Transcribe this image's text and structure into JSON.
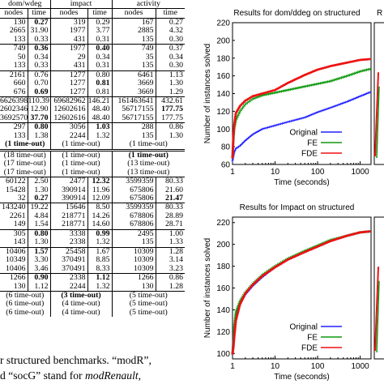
{
  "table": {
    "groups": [
      "dom/wdeg",
      "impact",
      "activity"
    ],
    "subheaders": [
      "nodes",
      "time",
      "nodes",
      "time",
      "nodes",
      "time"
    ],
    "rows": [
      {
        "c": [
          "130",
          "0.27",
          "319",
          "0.29",
          "167",
          "0.27"
        ],
        "b": [
          1
        ],
        "rule": "top"
      },
      {
        "c": [
          "2665",
          "31.90",
          "1977",
          "3.77",
          "2885",
          "4.32"
        ],
        "b": []
      },
      {
        "c": [
          "133",
          "0.33",
          "431",
          "0.31",
          "135",
          "0.30"
        ],
        "b": []
      },
      {
        "c": [
          "749",
          "0.36",
          "1977",
          "0.40",
          "749",
          "0.37"
        ],
        "b": [
          1,
          3
        ],
        "rule": "top"
      },
      {
        "c": [
          "50",
          "0.34",
          "29",
          "0.34",
          "35",
          "0.34"
        ],
        "b": []
      },
      {
        "c": [
          "133",
          "0.33",
          "431",
          "0.31",
          "135",
          "0.30"
        ],
        "b": []
      },
      {
        "c": [
          "2161",
          "0.76",
          "1277",
          "0.80",
          "6461",
          "1.13"
        ],
        "b": [],
        "rule": "top"
      },
      {
        "c": [
          "660",
          "0.70",
          "1277",
          "0.81",
          "3669",
          "1.30"
        ],
        "b": [
          3
        ]
      },
      {
        "c": [
          "676",
          "0.69",
          "1277",
          "0.81",
          "3669",
          "1.29"
        ],
        "b": [
          1
        ]
      },
      {
        "c": [
          "6626398",
          "110.39",
          "69682962",
          "146.21",
          "161463641",
          "432.61"
        ],
        "b": [],
        "rule": "top"
      },
      {
        "c": [
          "2602346",
          "12.90",
          "12602616",
          "48.40",
          "56717155",
          "177.75"
        ],
        "b": [
          5
        ]
      },
      {
        "c": [
          "3692570",
          "37.70",
          "12602616",
          "48.40",
          "56717155",
          "177.75"
        ],
        "b": [
          1
        ]
      },
      {
        "c": [
          "297",
          "0.80",
          "3056",
          "1.03",
          "288",
          "0.86"
        ],
        "b": [
          1,
          3
        ],
        "rule": "top"
      },
      {
        "c": [
          "133",
          "1.38",
          "2244",
          "1.32",
          "135",
          "1.30"
        ],
        "b": []
      },
      {
        "c": [
          "(1 time-out)",
          "(1 time-out)",
          "(1 time-out)"
        ],
        "span": true,
        "b": [
          0
        ]
      },
      {
        "c": [
          "(18 time-out)",
          "(1 time-out)",
          "(1 time-out)"
        ],
        "span": true,
        "b": [
          2
        ],
        "rule": "double"
      },
      {
        "c": [
          "(17 time-out)",
          "(1 time-out)",
          "(13 time-out)"
        ],
        "span": true,
        "b": []
      },
      {
        "c": [
          "(17 time-out)",
          "(1 time-out)",
          "(13 time-out)"
        ],
        "span": true,
        "b": []
      },
      {
        "c": [
          "60122",
          "2.50",
          "2477",
          "12.32",
          "3599359",
          "80.33"
        ],
        "b": [
          3
        ],
        "rule": "top"
      },
      {
        "c": [
          "15428",
          "1.30",
          "390914",
          "11.96",
          "675806",
          "21.60"
        ],
        "b": []
      },
      {
        "c": [
          "32",
          "0.27",
          "390914",
          "12.09",
          "675806",
          "21.47"
        ],
        "b": [
          1,
          5
        ]
      },
      {
        "c": [
          "143240",
          "19.22",
          "15646",
          "8.50",
          "3599359",
          "80.33"
        ],
        "b": [],
        "rule": "top"
      },
      {
        "c": [
          "2261",
          "4.84",
          "218771",
          "14.26",
          "678806",
          "28.89"
        ],
        "b": []
      },
      {
        "c": [
          "149",
          "1.54",
          "218771",
          "14.60",
          "678806",
          "28.71"
        ],
        "b": []
      },
      {
        "c": [
          "305",
          "0.80",
          "3338",
          "0.99",
          "2495",
          "1.00"
        ],
        "b": [
          1,
          3
        ],
        "rule": "top"
      },
      {
        "c": [
          "143",
          "1.30",
          "2338",
          "1.32",
          "135",
          "1.33"
        ],
        "b": []
      },
      {
        "c": [
          "10406",
          "1.57",
          "25458",
          "1.67",
          "10309",
          "1.28"
        ],
        "b": [
          1
        ],
        "rule": "top"
      },
      {
        "c": [
          "10349",
          "3.30",
          "370491",
          "8.85",
          "10309",
          "3.14"
        ],
        "b": []
      },
      {
        "c": [
          "10406",
          "3.46",
          "370491",
          "8.33",
          "10309",
          "3.23"
        ],
        "b": []
      },
      {
        "c": [
          "1266",
          "0.90",
          "2338",
          "1.12",
          "1266",
          "0.86"
        ],
        "b": [
          1,
          3
        ],
        "rule": "top"
      },
      {
        "c": [
          "130",
          "1.12",
          "2244",
          "1.32",
          "130",
          "1.28"
        ],
        "b": []
      },
      {
        "c": [
          "(6 time-out)",
          "(3 time-out)",
          "(5 time-out)"
        ],
        "span": true,
        "b": [
          1
        ],
        "rule": "top"
      },
      {
        "c": [
          "(6 time-out)",
          "(4 time-out)",
          "(5 time-out)"
        ],
        "span": true,
        "b": []
      },
      {
        "c": [
          "(6 time-out)",
          "(4 time-out)",
          "(5 time-out)"
        ],
        "span": true,
        "b": []
      }
    ]
  },
  "caption": {
    "line1a": "r structured benchmarks. “modR”,",
    "line2a": "d “socG” stand for ",
    "line2b": "modRenault",
    "line2c": ","
  },
  "charts": [
    {
      "title": "Results for dom/ddeg on structured",
      "ylabel": "Number of instances solved",
      "xlabel": "Time (seconds)",
      "yticks": [
        "60",
        "80",
        "100",
        "120",
        "140",
        "160",
        "180",
        "200",
        "220"
      ],
      "xticks": [
        "1",
        "10",
        "100",
        "1000"
      ],
      "legend": [
        "Original",
        "FE",
        "FDE"
      ]
    },
    {
      "title": "Results for Impact on structured",
      "ylabel": "Number of instances solved",
      "xlabel": "Time (seconds)",
      "yticks": [
        "100",
        "120",
        "140",
        "160",
        "180",
        "200",
        "220"
      ],
      "xticks": [
        "1",
        "10",
        "100",
        "1000"
      ],
      "legend": [
        "Original",
        "FE",
        "FDE"
      ]
    }
  ],
  "partial_title_right": "R",
  "colors": {
    "original": "#2222ff",
    "fe": "#119911",
    "fde": "#ee1111"
  },
  "chart_data": [
    {
      "type": "line",
      "title": "Results for dom/ddeg on structured",
      "xlabel": "Time (seconds)",
      "ylabel": "Number of instances solved",
      "xscale": "log",
      "xlim": [
        1,
        1800
      ],
      "ylim": [
        60,
        220
      ],
      "legend": "bottom-right",
      "series": [
        {
          "name": "Original",
          "x": [
            1,
            1.1,
            1.2,
            1.5,
            2,
            3,
            5,
            10,
            20,
            50,
            100,
            200,
            500,
            1000,
            1800
          ],
          "y": [
            64,
            74,
            78,
            81,
            87,
            94,
            100,
            104,
            108,
            113,
            119,
            124,
            131,
            137,
            142
          ]
        },
        {
          "name": "FE",
          "x": [
            1,
            1.05,
            1.1,
            1.2,
            1.5,
            2,
            3,
            5,
            10,
            20,
            50,
            100,
            200,
            500,
            1000,
            1800
          ],
          "y": [
            68,
            88,
            100,
            110,
            120,
            128,
            134,
            138,
            141,
            144,
            148,
            151,
            154,
            160,
            165,
            168
          ]
        },
        {
          "name": "FDE",
          "x": [
            1,
            1.05,
            1.1,
            1.2,
            1.5,
            2,
            3,
            5,
            10,
            20,
            50,
            100,
            200,
            500,
            1000,
            1800
          ],
          "y": [
            68,
            92,
            105,
            118,
            126,
            132,
            137,
            140,
            144,
            152,
            161,
            167,
            171,
            175,
            178,
            179
          ]
        }
      ]
    },
    {
      "type": "line",
      "title": "Results for Impact on structured",
      "xlabel": "Time (seconds)",
      "ylabel": "Number of instances solved",
      "xscale": "log",
      "xlim": [
        1,
        1800
      ],
      "ylim": [
        95,
        225
      ],
      "legend": "bottom-right",
      "series": [
        {
          "name": "Original",
          "x": [
            1,
            1.1,
            1.2,
            1.5,
            2,
            3,
            5,
            10,
            20,
            50,
            100,
            200,
            500,
            1000,
            1800
          ],
          "y": [
            100,
            125,
            135,
            145,
            154,
            162,
            170,
            179,
            186,
            193,
            198,
            203,
            208,
            211,
            212
          ]
        },
        {
          "name": "FE",
          "x": [
            1,
            1.05,
            1.1,
            1.2,
            1.5,
            2,
            3,
            5,
            10,
            20,
            50,
            100,
            200,
            500,
            1000,
            1800
          ],
          "y": [
            100,
            110,
            126,
            138,
            148,
            156,
            164,
            172,
            180,
            187,
            194,
            199,
            204,
            208,
            211,
            212
          ]
        },
        {
          "name": "FDE",
          "x": [
            1,
            1.05,
            1.1,
            1.2,
            1.5,
            2,
            3,
            5,
            10,
            20,
            50,
            100,
            200,
            500,
            1000,
            1800
          ],
          "y": [
            100,
            105,
            115,
            130,
            145,
            155,
            163,
            171,
            179,
            186,
            193,
            198,
            203,
            208,
            211,
            212
          ]
        }
      ]
    }
  ]
}
